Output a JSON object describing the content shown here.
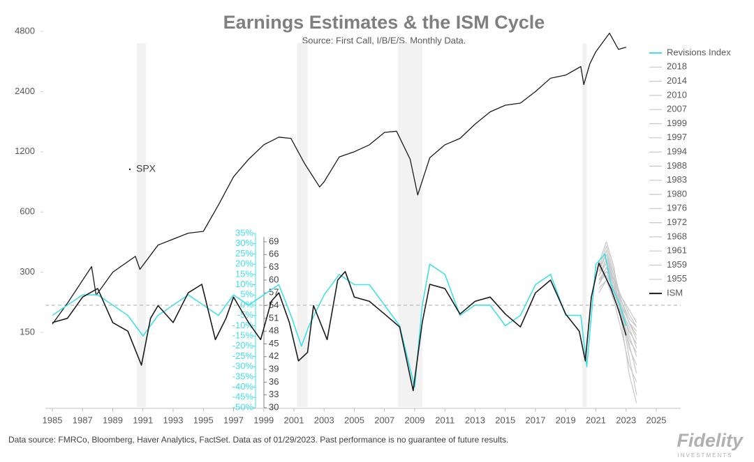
{
  "chart_data": {
    "type": "line",
    "title": "Earnings Estimates & the ISM Cycle",
    "subtitle": "Source: First Call, I/B/E/S. Monthly Data.",
    "footer": "Data source: FMRCo, Bloomberg, Haver Analytics, FactSet. Data as of 01/29/2023. Past performance is no guarantee of future results.",
    "logo": "Fidelity",
    "logo_sub": "INVESTMENTS",
    "xlim": [
      1985,
      2025
    ],
    "xticks": [
      1985,
      1987,
      1989,
      1991,
      1993,
      1995,
      1997,
      1999,
      2001,
      2003,
      2005,
      2007,
      2009,
      2011,
      2013,
      2015,
      2017,
      2019,
      2021,
      2023,
      2025
    ],
    "ylim": [
      150,
      4800
    ],
    "yscale": "log",
    "yticks": [
      150,
      300,
      600,
      1200,
      2400,
      4800
    ],
    "y2lim": [
      30,
      69
    ],
    "y2ticks": [
      30,
      33,
      36,
      39,
      42,
      45,
      48,
      51,
      54,
      57,
      60,
      63,
      66,
      69
    ],
    "y3lim": [
      -50,
      35
    ],
    "y3color": "#3fe0e8",
    "y3ticks": [
      {
        "value": -50,
        "label": "-50%"
      },
      {
        "value": -45,
        "label": "-45%"
      },
      {
        "value": -40,
        "label": "-40%"
      },
      {
        "value": -35,
        "label": "-35%"
      },
      {
        "value": -30,
        "label": "-30%"
      },
      {
        "value": -25,
        "label": "-25%"
      },
      {
        "value": -20,
        "label": "-20%"
      },
      {
        "value": -15,
        "label": "-15%"
      },
      {
        "value": -10,
        "label": "-10%"
      },
      {
        "value": -5,
        "label": "-5%"
      },
      {
        "value": 0,
        "label": "0%"
      },
      {
        "value": 5,
        "label": "5%"
      },
      {
        "value": 10,
        "label": "10%"
      },
      {
        "value": 15,
        "label": "15%"
      },
      {
        "value": 20,
        "label": "20%"
      },
      {
        "value": 25,
        "label": "25%"
      },
      {
        "value": 30,
        "label": "30%"
      },
      {
        "value": 35,
        "label": "35%"
      }
    ],
    "reference_line": 0,
    "recessions": [
      [
        1990.6,
        1991.2
      ],
      [
        2001.2,
        2001.9
      ],
      [
        2007.9,
        2009.5
      ],
      [
        2020.1,
        2020.4
      ]
    ],
    "series": [
      {
        "name": "SPX",
        "color": "#1a1a1a",
        "axis": "y",
        "x": [
          1985,
          1986,
          1987.6,
          1987.9,
          1989,
          1990.5,
          1990.8,
          1992,
          1994,
          1995,
          1996,
          1997,
          1998,
          1999,
          2000,
          2000.8,
          2001.7,
          2002.7,
          2003,
          2004,
          2005,
          2006,
          2007,
          2007.8,
          2008.7,
          2009.2,
          2010,
          2011,
          2012,
          2013,
          2014,
          2015,
          2016,
          2017,
          2018,
          2019,
          2020,
          2020.2,
          2020.6,
          2021,
          2021.9,
          2022.5,
          2023
        ],
        "values": [
          165,
          210,
          320,
          230,
          300,
          360,
          310,
          410,
          470,
          480,
          650,
          900,
          1100,
          1300,
          1420,
          1400,
          1050,
          800,
          850,
          1130,
          1200,
          1300,
          1500,
          1520,
          1100,
          730,
          1120,
          1300,
          1400,
          1650,
          1900,
          2050,
          2100,
          2400,
          2800,
          2900,
          3200,
          2600,
          3300,
          3800,
          4700,
          3900,
          4000
        ]
      },
      {
        "name": "Revisions Index",
        "color": "#3fe0e8",
        "axis": "y3",
        "x": [
          1985,
          1986,
          1987,
          1988,
          1989,
          1990,
          1991,
          1992,
          1993,
          1994,
          1995,
          1996,
          1997,
          1998,
          1999,
          2000,
          2000.8,
          2001.5,
          2002,
          2003,
          2004,
          2005,
          2006,
          2007,
          2008,
          2009,
          2009.5,
          2010,
          2011,
          2012,
          2013,
          2014,
          2015,
          2016,
          2017,
          2018,
          2019,
          2020,
          2020.4,
          2021,
          2021.6,
          2022,
          2022.6,
          2023
        ],
        "values": [
          -5,
          0,
          5,
          5,
          0,
          -5,
          -15,
          -5,
          0,
          5,
          0,
          -5,
          5,
          0,
          5,
          10,
          -5,
          -20,
          -10,
          5,
          15,
          10,
          10,
          0,
          -10,
          -40,
          0,
          20,
          15,
          -5,
          0,
          0,
          -10,
          -5,
          10,
          15,
          -5,
          -5,
          -30,
          20,
          25,
          10,
          0,
          -10
        ]
      },
      {
        "name": "2018",
        "color": "#c8c8c8",
        "axis": "y2",
        "x": [
          2021.2,
          2021.7,
          2022.2,
          2022.7,
          2023.2,
          2023.7
        ],
        "values": [
          62,
          66,
          60,
          55,
          50,
          48
        ]
      },
      {
        "name": "2014",
        "color": "#c8c8c8",
        "axis": "y2",
        "x": [
          2021.2,
          2021.7,
          2022.2,
          2022.7,
          2023.2,
          2023.7
        ],
        "values": [
          60,
          63,
          58,
          52,
          48,
          45
        ]
      },
      {
        "name": "2010",
        "color": "#c8c8c8",
        "axis": "y2",
        "x": [
          2021.2,
          2021.7,
          2022.2,
          2022.7,
          2023.2,
          2023.7
        ],
        "values": [
          63,
          68,
          62,
          55,
          50,
          46
        ]
      },
      {
        "name": "2007",
        "color": "#c8c8c8",
        "axis": "y2",
        "x": [
          2021.2,
          2021.7,
          2022.2,
          2022.7,
          2023.2,
          2023.7
        ],
        "values": [
          58,
          60,
          57,
          54,
          50,
          47
        ]
      },
      {
        "name": "1999",
        "color": "#c8c8c8",
        "axis": "y2",
        "x": [
          2021.2,
          2021.7,
          2022.2,
          2022.7,
          2023.2,
          2023.7
        ],
        "values": [
          61,
          64,
          59,
          53,
          49,
          44
        ]
      },
      {
        "name": "1997",
        "color": "#c8c8c8",
        "axis": "y2",
        "x": [
          2021.2,
          2021.7,
          2022.2,
          2022.7,
          2023.2,
          2023.7
        ],
        "values": [
          59,
          62,
          60,
          56,
          52,
          49
        ]
      },
      {
        "name": "1994",
        "color": "#c8c8c8",
        "axis": "y2",
        "x": [
          2021.2,
          2021.7,
          2022.2,
          2022.7,
          2023.2,
          2023.7
        ],
        "values": [
          62,
          67,
          61,
          54,
          47,
          42
        ]
      },
      {
        "name": "1988",
        "color": "#c8c8c8",
        "axis": "y2",
        "x": [
          2021.2,
          2021.7,
          2022.2,
          2022.7,
          2023.2,
          2023.7
        ],
        "values": [
          60,
          61,
          58,
          55,
          51,
          49
        ]
      },
      {
        "name": "1983",
        "color": "#c8c8c8",
        "axis": "y2",
        "x": [
          2021.2,
          2021.7,
          2022.2,
          2022.7,
          2023.2,
          2023.7
        ],
        "values": [
          64,
          69,
          63,
          52,
          42,
          33
        ]
      },
      {
        "name": "1980",
        "color": "#c8c8c8",
        "axis": "y2",
        "x": [
          2021.2,
          2021.7,
          2022.2,
          2022.7,
          2023.2,
          2023.7
        ],
        "values": [
          57,
          60,
          55,
          48,
          40,
          36
        ]
      },
      {
        "name": "1976",
        "color": "#c8c8c8",
        "axis": "y2",
        "x": [
          2021.2,
          2021.7,
          2022.2,
          2022.7,
          2023.2,
          2023.7
        ],
        "values": [
          61,
          65,
          60,
          56,
          53,
          50
        ]
      },
      {
        "name": "1972",
        "color": "#c8c8c8",
        "axis": "y2",
        "x": [
          2021.2,
          2021.7,
          2022.2,
          2022.7,
          2023.2,
          2023.7
        ],
        "values": [
          63,
          66,
          61,
          50,
          38,
          31
        ]
      },
      {
        "name": "1968",
        "color": "#c8c8c8",
        "axis": "y2",
        "x": [
          2021.2,
          2021.7,
          2022.2,
          2022.7,
          2023.2,
          2023.7
        ],
        "values": [
          60,
          62,
          57,
          52,
          46,
          43
        ]
      },
      {
        "name": "1961",
        "color": "#c8c8c8",
        "axis": "y2",
        "x": [
          2021.2,
          2021.7,
          2022.2,
          2022.7,
          2023.2,
          2023.7
        ],
        "values": [
          62,
          64,
          58,
          53,
          48,
          45
        ]
      },
      {
        "name": "1959",
        "color": "#c8c8c8",
        "axis": "y2",
        "x": [
          2021.2,
          2021.7,
          2022.2,
          2022.7,
          2023.2,
          2023.7
        ],
        "values": [
          59,
          63,
          60,
          52,
          44,
          40
        ]
      },
      {
        "name": "1955",
        "color": "#c8c8c8",
        "axis": "y2",
        "x": [
          2021.2,
          2021.7,
          2022.2,
          2022.7,
          2023.2,
          2023.7
        ],
        "values": [
          61,
          65,
          59,
          51,
          45,
          38
        ]
      },
      {
        "name": "ISM",
        "color": "#1a1a1a",
        "axis": "y2",
        "x": [
          1985,
          1986,
          1987,
          1988,
          1989,
          1990,
          1990.9,
          1991.5,
          1992,
          1993,
          1994,
          1994.9,
          1995.8,
          1996.5,
          1997,
          1998,
          1998.8,
          1999.5,
          2000,
          2000.7,
          2001.3,
          2001.9,
          2002.3,
          2003.2,
          2003.9,
          2004.4,
          2005,
          2006,
          2007,
          2008,
          2008.9,
          2009.5,
          2010,
          2011,
          2012,
          2013,
          2014,
          2015,
          2016,
          2017,
          2018,
          2019,
          2019.9,
          2020.3,
          2020.7,
          2021.2,
          2021.6,
          2022,
          2022.5,
          2023
        ],
        "values": [
          50,
          51,
          56,
          58,
          50,
          48,
          40,
          51,
          54,
          50,
          57,
          59,
          46,
          51,
          56,
          50,
          46,
          55,
          57,
          50,
          41,
          43,
          54,
          46,
          60,
          62,
          56,
          55,
          52,
          49,
          34,
          50,
          59,
          58,
          52,
          55,
          56,
          52,
          49,
          57,
          60,
          52,
          48,
          41,
          56,
          64,
          61,
          58,
          53,
          47
        ]
      }
    ]
  }
}
